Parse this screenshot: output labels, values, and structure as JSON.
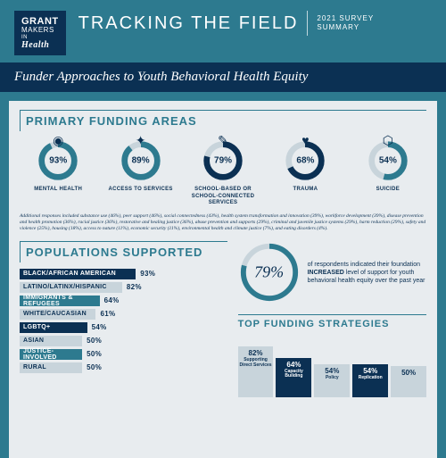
{
  "header": {
    "logo": {
      "l1": "GRANT",
      "l2": "MAKERS",
      "l3": "Health",
      "in": "IN"
    },
    "title": "TRACKING THE FIELD",
    "year_l1": "2021 SURVEY",
    "year_l2": "SUMMARY"
  },
  "band": "Funder Approaches to Youth Behavioral Health Equity",
  "primary": {
    "title": "PRIMARY FUNDING AREAS",
    "items": [
      {
        "pct": 93,
        "label": "MENTAL HEALTH",
        "icon": "◉",
        "color": "#2d7a8f"
      },
      {
        "pct": 89,
        "label": "ACCESS TO SERVICES",
        "icon": "✦",
        "color": "#2d7a8f"
      },
      {
        "pct": 79,
        "label": "SCHOOL-BASED OR SCHOOL-CONNECTED SERVICES",
        "icon": "✎",
        "color": "#0b3053"
      },
      {
        "pct": 68,
        "label": "TRAUMA",
        "icon": "♥",
        "color": "#0b3053"
      },
      {
        "pct": 54,
        "label": "SUICIDE",
        "icon": "⬡",
        "color": "#2d7a8f"
      }
    ],
    "footnote": "Additional responses included substance use (46%), peer support (46%), social connectedness (43%), health system transformation and innovation (39%), workforce development (39%), disease prevention and health promotion (36%), racial justice (36%), restorative and healing justice (36%), abuse prevention and supports (29%), criminal and juvenile justice systems (29%), harm reduction (29%), safety and violence (25%), housing (18%), access to nature (11%), economic security (11%), environmental health and climate justice (7%), and eating disorders (4%)."
  },
  "populations": {
    "title": "POPULATIONS SUPPORTED",
    "bars": [
      {
        "label": "BLACK/AFRICAN AMERICAN",
        "pct": 93,
        "bg": "#0b3053",
        "fg": "#fff"
      },
      {
        "label": "LATINO/LATINX/HISPANIC",
        "pct": 82,
        "bg": "#c8d4db",
        "fg": "#0b3053"
      },
      {
        "label": "IMMIGRANTS & REFUGEES",
        "pct": 64,
        "bg": "#2d7a8f",
        "fg": "#fff"
      },
      {
        "label": "WHITE/CAUCASIAN",
        "pct": 61,
        "bg": "#c8d4db",
        "fg": "#0b3053"
      },
      {
        "label": "LGBTQ+",
        "pct": 54,
        "bg": "#0b3053",
        "fg": "#fff"
      },
      {
        "label": "ASIAN",
        "pct": 50,
        "bg": "#c8d4db",
        "fg": "#0b3053"
      },
      {
        "label": "JUSTICE-INVOLVED",
        "pct": 50,
        "bg": "#2d7a8f",
        "fg": "#fff"
      },
      {
        "label": "RURAL",
        "pct": 50,
        "bg": "#c8d4db",
        "fg": "#0b3053"
      }
    ]
  },
  "increase": {
    "pct": 79,
    "text_pre": "of respondents indicated their foundation ",
    "text_bold": "INCREASED",
    "text_post": " level of support for youth behavioral health equity over the past year",
    "ring_color": "#2d7a8f",
    "track_color": "#c8d4db"
  },
  "strategies": {
    "title": "TOP FUNDING STRATEGIES",
    "bars": [
      {
        "pct": 82,
        "label": "Supporting Direct Services",
        "bg": "#c8d4db",
        "fg": "#0b3053"
      },
      {
        "pct": 64,
        "label": "Capacity Building",
        "bg": "#0b3053",
        "fg": "#fff"
      },
      {
        "pct": 54,
        "label": "Policy",
        "bg": "#c8d4db",
        "fg": "#0b3053"
      },
      {
        "pct": 54,
        "label": "Replication",
        "bg": "#0b3053",
        "fg": "#fff"
      },
      {
        "pct": 50,
        "label": "",
        "bg": "#c8d4db",
        "fg": "#0b3053"
      }
    ]
  },
  "style": {
    "donut_track": "#c8d4db",
    "max_bar_width": 140
  }
}
